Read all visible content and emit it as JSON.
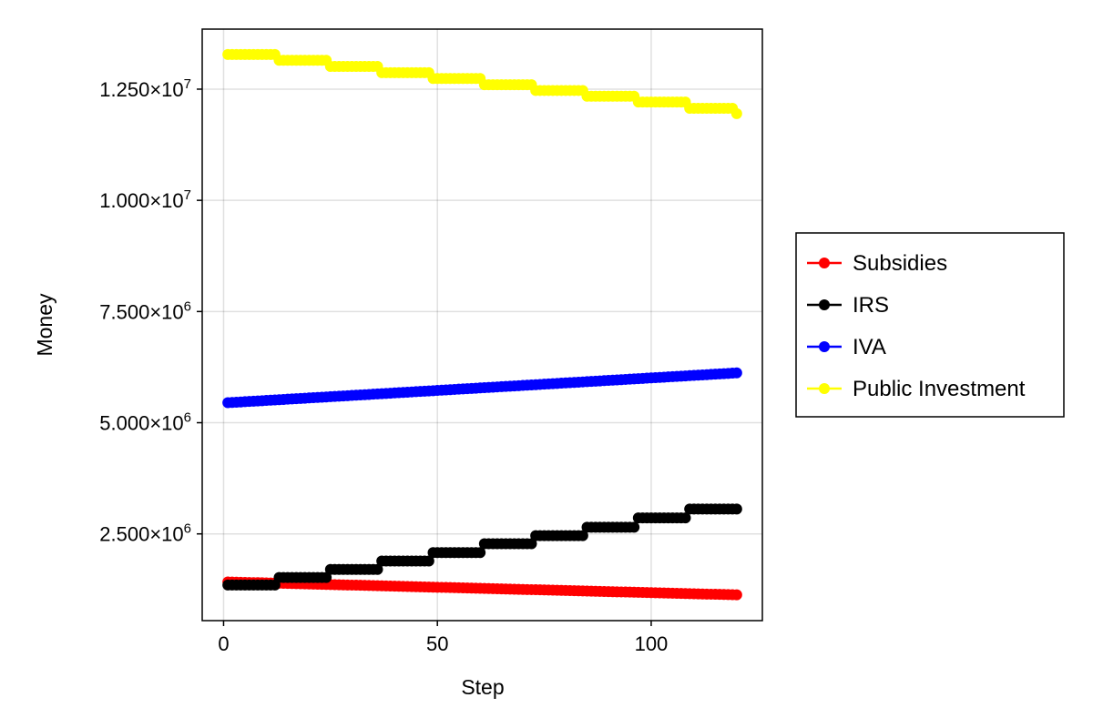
{
  "chart_data": {
    "type": "scatter",
    "xlabel": "Step",
    "ylabel": "Money",
    "xlim": [
      -5,
      126
    ],
    "ylim": [
      550000,
      13850000
    ],
    "x_ticks": [
      0,
      50,
      100
    ],
    "y_ticks": [
      2500000,
      5000000,
      7500000,
      10000000,
      12500000
    ],
    "y_tick_labels": [
      {
        "mantissa": "2.500",
        "exp": "6"
      },
      {
        "mantissa": "5.000",
        "exp": "6"
      },
      {
        "mantissa": "7.500",
        "exp": "6"
      },
      {
        "mantissa": "1.000",
        "exp": "7"
      },
      {
        "mantissa": "1.250",
        "exp": "7"
      }
    ],
    "grid": true,
    "legend_position": "right",
    "x_range": [
      1,
      120
    ],
    "series": [
      {
        "name": "Subsidies",
        "color": "#ff0000",
        "shape": "linear",
        "start": 1420000,
        "end": 1130000
      },
      {
        "name": "IRS",
        "color": "#000000",
        "shape": "staircase",
        "period": 12,
        "levels": [
          1350000,
          1520000,
          1700000,
          1890000,
          2080000,
          2280000,
          2460000,
          2650000,
          2860000,
          3060000
        ]
      },
      {
        "name": "IVA",
        "color": "#0000ff",
        "shape": "linear",
        "start": 5450000,
        "end": 6120000
      },
      {
        "name": "Public Investment",
        "color": "#ffff00",
        "shape": "staircase",
        "period": 12,
        "levels": [
          13280000,
          13150000,
          13010000,
          12870000,
          12740000,
          12600000,
          12470000,
          12340000,
          12210000,
          12070000
        ],
        "final": 11950000
      }
    ]
  }
}
